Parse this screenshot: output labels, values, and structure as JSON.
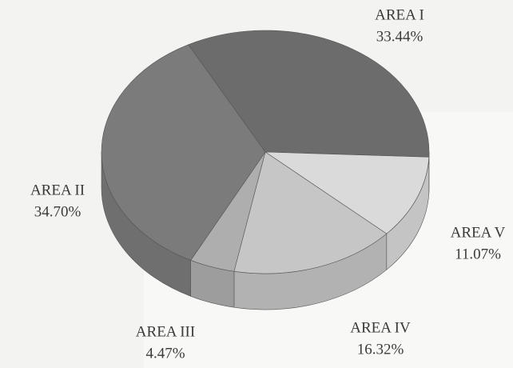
{
  "chart_data": {
    "type": "pie",
    "categories": [
      "AREA I",
      "AREA V",
      "AREA IV",
      "AREA III",
      "AREA II"
    ],
    "values": [
      33.44,
      11.07,
      16.32,
      4.47,
      34.7
    ],
    "value_labels": [
      "33.44%",
      "11.07%",
      "16.32%",
      "4.47%",
      "34.70%"
    ],
    "colors": [
      "#6c6c6c",
      "#dadada",
      "#c6c6c6",
      "#aeaeae",
      "#7b7b7b"
    ]
  }
}
